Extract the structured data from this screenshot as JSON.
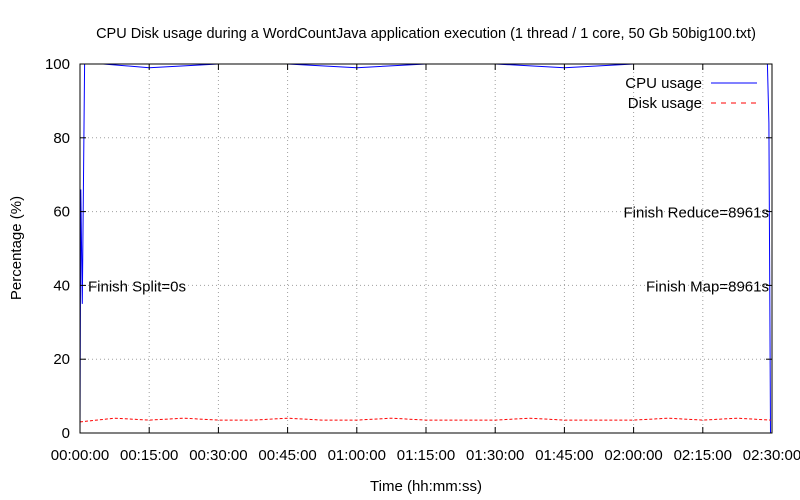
{
  "chart_data": {
    "type": "line",
    "title": "CPU  Disk usage during a WordCountJava application execution (1 thread / 1 core, 50 Gb 50big100.txt)",
    "xlabel": "Time (hh:mm:ss)",
    "ylabel": "Percentage (%)",
    "xlim": [
      "00:00:00",
      "02:30:00"
    ],
    "ylim": [
      0,
      100
    ],
    "x_ticks": [
      "00:00:00",
      "00:15:00",
      "00:30:00",
      "00:45:00",
      "01:00:00",
      "01:15:00",
      "01:30:00",
      "01:45:00",
      "02:00:00",
      "02:15:00",
      "02:30:00"
    ],
    "y_ticks": [
      "0",
      "20",
      "40",
      "60",
      "80",
      "100"
    ],
    "grid": true,
    "legend_position": "top-right",
    "series": [
      {
        "name": "CPU usage",
        "color": "#0000ff",
        "style": "solid",
        "x": [
          "00:00:00",
          "00:00:10",
          "00:00:30",
          "00:01:00",
          "00:05:00",
          "00:15:00",
          "00:30:00",
          "00:45:00",
          "01:00:00",
          "01:15:00",
          "01:30:00",
          "01:45:00",
          "02:00:00",
          "02:15:00",
          "02:29:00",
          "02:29:20",
          "02:29:40"
        ],
        "y": [
          0,
          66,
          35,
          100,
          100,
          99,
          100,
          100,
          99,
          100,
          100,
          99,
          100,
          100,
          100,
          84,
          0
        ]
      },
      {
        "name": "Disk usage",
        "color": "#ff0000",
        "style": "dashed",
        "x": [
          "00:00:00",
          "00:07:30",
          "00:15:00",
          "00:22:30",
          "00:30:00",
          "00:37:30",
          "00:45:00",
          "00:52:30",
          "01:00:00",
          "01:07:30",
          "01:15:00",
          "01:22:30",
          "01:30:00",
          "01:37:30",
          "01:45:00",
          "01:52:30",
          "02:00:00",
          "02:07:30",
          "02:15:00",
          "02:22:30",
          "02:29:40"
        ],
        "y": [
          3,
          4,
          3.5,
          4,
          3.5,
          3.5,
          4,
          3.5,
          3.5,
          4,
          3.5,
          3.5,
          3.5,
          4,
          3.5,
          3.5,
          3.5,
          4,
          3.5,
          4,
          3.5
        ]
      }
    ],
    "annotations": [
      {
        "text": "Finish Split=0s",
        "x": "00:00:00",
        "y": 40,
        "align": "left"
      },
      {
        "text": "Finish Map=8961s",
        "x": "02:29:21",
        "y": 40,
        "align": "right"
      },
      {
        "text": "Finish Reduce=8961s",
        "x": "02:29:21",
        "y": 60,
        "align": "right"
      }
    ]
  }
}
